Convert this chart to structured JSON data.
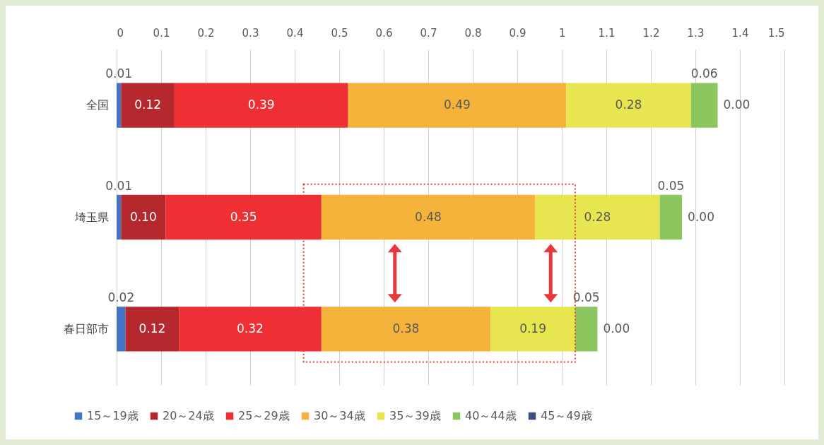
{
  "chart_data": {
    "type": "bar",
    "orientation": "horizontal",
    "stacked": true,
    "categories": [
      "全国",
      "埼玉県",
      "春日部市"
    ],
    "xlim": [
      0,
      1.5
    ],
    "xticks": [
      0,
      0.1,
      0.2,
      0.3,
      0.4,
      0.5,
      0.6,
      0.7,
      0.8,
      0.9,
      1,
      1.1,
      1.2,
      1.3,
      1.4,
      1.5
    ],
    "grid": "x",
    "legend": "bottom",
    "series": [
      {
        "name": "15～19歳",
        "color": "#4472c4",
        "values": [
          0.01,
          0.01,
          0.02
        ],
        "value_labels": [
          "0.01",
          "0.01",
          "0.02"
        ]
      },
      {
        "name": "20～24歳",
        "color": "#b5282e",
        "values": [
          0.12,
          0.1,
          0.12
        ],
        "value_labels": [
          "0.12",
          "0.10",
          "0.12"
        ]
      },
      {
        "name": "25～29歳",
        "color": "#ee3035",
        "values": [
          0.39,
          0.35,
          0.32
        ],
        "value_labels": [
          "0.39",
          "0.35",
          "0.32"
        ]
      },
      {
        "name": "30～34歳",
        "color": "#f5b33c",
        "values": [
          0.49,
          0.48,
          0.38
        ],
        "value_labels": [
          "0.49",
          "0.48",
          "0.38"
        ]
      },
      {
        "name": "35～39歳",
        "color": "#e8e650",
        "values": [
          0.28,
          0.28,
          0.19
        ],
        "value_labels": [
          "0.28",
          "0.28",
          "0.19"
        ]
      },
      {
        "name": "40～44歳",
        "color": "#8cc65f",
        "values": [
          0.06,
          0.05,
          0.05
        ],
        "value_labels": [
          "0.06",
          "0.05",
          "0.05"
        ]
      },
      {
        "name": "45～49歳",
        "color": "#3c4e7e",
        "values": [
          0.0,
          0.0,
          0.0
        ],
        "value_labels": [
          "0.00",
          "0.00",
          "0.00"
        ]
      }
    ]
  }
}
